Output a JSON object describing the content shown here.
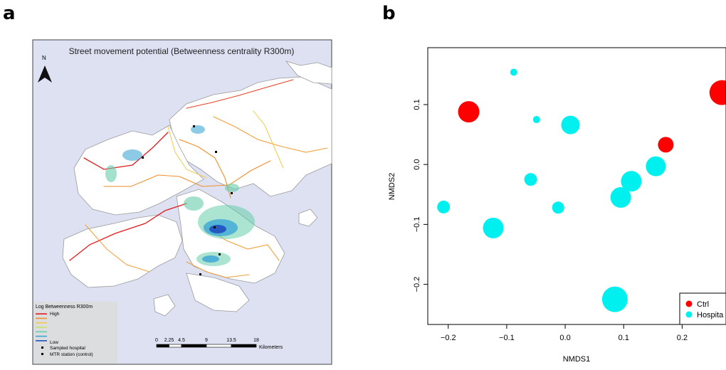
{
  "panels": {
    "a": {
      "letter": "a"
    },
    "b": {
      "letter": "b"
    }
  },
  "map": {
    "title": "Street movement potential (Betweenness centrality R300m)",
    "north_label": "N",
    "legend": {
      "title": "Log Betweenness R300m",
      "high_label": "High",
      "low_label": "Low",
      "hospital_label": "Sampled hospital",
      "station_label": "MTR station (control)",
      "gradient_colors": [
        "#e41a1c",
        "#f28e2b",
        "#f2c94c",
        "#c7e36b",
        "#66cdaa",
        "#3fa7d6",
        "#1f4fbf"
      ]
    },
    "scale_bar": {
      "ticks": [
        "0",
        "2.25",
        "4.5",
        "9",
        "13.5",
        "18"
      ],
      "unit": "Kilometers"
    },
    "colors": {
      "sea": "#dde1f2",
      "land": "#ffffff",
      "coast": "#9a9a9a"
    }
  },
  "chart_data": {
    "type": "scatter",
    "xlabel": "NMDS1",
    "ylabel": "NMDS2",
    "xlim": [
      -0.235,
      0.275
    ],
    "ylim": [
      -0.267,
      0.195
    ],
    "xticks": [
      -0.2,
      -0.1,
      0.0,
      0.1,
      0.2
    ],
    "xtick_labels": [
      "−0.2",
      "−0.1",
      "0.0",
      "0.1",
      "0.2"
    ],
    "yticks": [
      -0.2,
      -0.1,
      0.0,
      0.1
    ],
    "ytick_labels": [
      "−0.2",
      "−0.1",
      "0.0",
      "0.1"
    ],
    "legend_position": "bottom-right",
    "series": [
      {
        "name": "Ctrl",
        "color": "#ff0000",
        "points": [
          {
            "x": -0.165,
            "y": 0.088,
            "size": 3.0
          },
          {
            "x": 0.172,
            "y": 0.033,
            "size": 2.2
          },
          {
            "x": 0.268,
            "y": 0.12,
            "size": 3.5
          }
        ]
      },
      {
        "name": "Hospita",
        "color": "#00f0f0",
        "points": [
          {
            "x": -0.088,
            "y": 0.154,
            "size": 1.0
          },
          {
            "x": -0.049,
            "y": 0.075,
            "size": 1.0
          },
          {
            "x": 0.009,
            "y": 0.066,
            "size": 2.6
          },
          {
            "x": -0.059,
            "y": -0.025,
            "size": 1.8
          },
          {
            "x": -0.012,
            "y": -0.072,
            "size": 1.7
          },
          {
            "x": -0.208,
            "y": -0.071,
            "size": 1.8
          },
          {
            "x": -0.123,
            "y": -0.106,
            "size": 2.9
          },
          {
            "x": 0.155,
            "y": -0.003,
            "size": 2.8
          },
          {
            "x": 0.113,
            "y": -0.028,
            "size": 2.9
          },
          {
            "x": 0.095,
            "y": -0.055,
            "size": 2.9
          },
          {
            "x": 0.085,
            "y": -0.225,
            "size": 3.6
          }
        ]
      }
    ]
  }
}
